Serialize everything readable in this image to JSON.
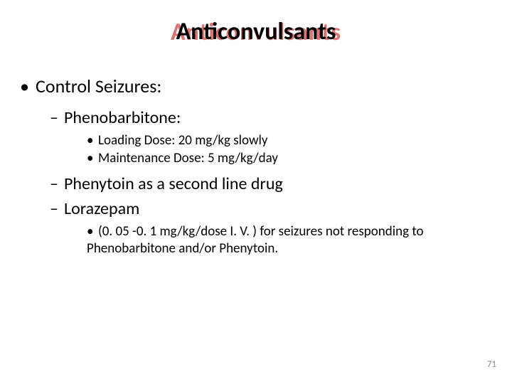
{
  "title": "Anticonvulsants",
  "heading": "Control Seizures:",
  "drug1": {
    "name": "Phenobarbitone:",
    "loading": "Loading Dose: 20 mg/kg slowly",
    "maintenance": "Maintenance Dose: 5 mg/kg/day"
  },
  "drug2": "Phenytoin as a second line drug",
  "drug3": {
    "name": "Lorazepam",
    "note": "(0. 05 -0. 1 mg/kg/dose I. V. ) for seizures not responding to Phenobarbitone and/or Phenytoin."
  },
  "pageNumber": "71",
  "colors": {
    "titleShadow": "#c00000",
    "text": "#000000",
    "pageNum": "#8b8b8b",
    "background": "#ffffff"
  },
  "fontSizes": {
    "title": 34,
    "lvl1": 26,
    "lvl2": 24,
    "lvl3": 19,
    "pageNum": 13
  }
}
